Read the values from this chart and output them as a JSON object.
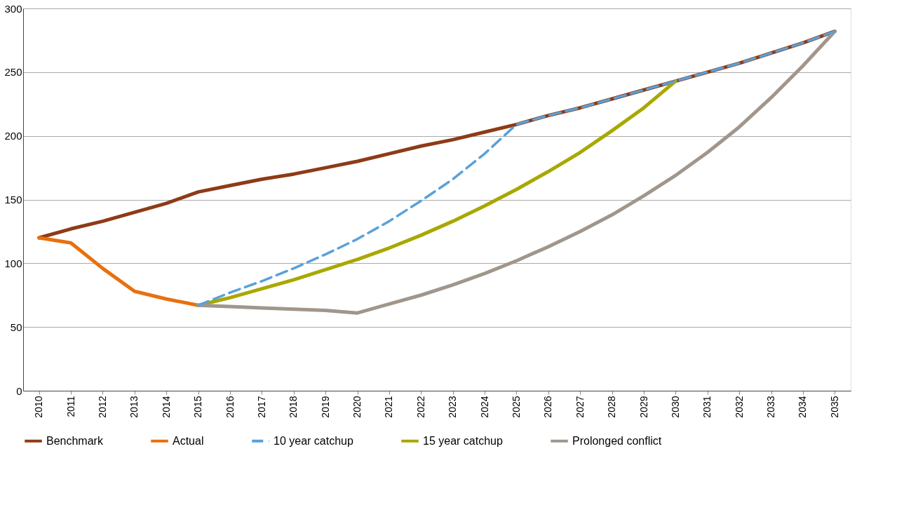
{
  "chart_data": {
    "type": "line",
    "categories": [
      "2010",
      "2011",
      "2012",
      "2013",
      "2014",
      "2015",
      "2016",
      "2017",
      "2018",
      "2019",
      "2020",
      "2021",
      "2022",
      "2023",
      "2024",
      "2025",
      "2026",
      "2027",
      "2028",
      "2029",
      "2030",
      "2031",
      "2032",
      "2033",
      "2034",
      "2035"
    ],
    "ylim": [
      0,
      300
    ],
    "yticks": [
      0,
      50,
      100,
      150,
      200,
      250,
      300
    ],
    "grid": "y",
    "legend": "bottom",
    "marker": "none",
    "series": [
      {
        "name": "Benchmark",
        "color": "#8e3b17",
        "line_style": "solid",
        "values": [
          120,
          127,
          133,
          140,
          147,
          156,
          161,
          166,
          170,
          175,
          180,
          186,
          192,
          197,
          203,
          209,
          216,
          222,
          229,
          236,
          243,
          250,
          257,
          265,
          273,
          282
        ]
      },
      {
        "name": "Actual",
        "color": "#e8700f",
        "line_style": "solid",
        "values": [
          120,
          116,
          96,
          78,
          72,
          67,
          null,
          null,
          null,
          null,
          null,
          null,
          null,
          null,
          null,
          null,
          null,
          null,
          null,
          null,
          null,
          null,
          null,
          null,
          null,
          null
        ]
      },
      {
        "name": "10 year catchup",
        "color": "#5aa1d8",
        "line_style": "dashed",
        "values": [
          null,
          null,
          null,
          null,
          null,
          67,
          77,
          86,
          96,
          107,
          119,
          133,
          149,
          166,
          186,
          209,
          216,
          222,
          229,
          236,
          243,
          250,
          257,
          265,
          273,
          282
        ]
      },
      {
        "name": "15 year catchup",
        "color": "#a8a800",
        "line_style": "solid",
        "values": [
          null,
          null,
          null,
          null,
          null,
          67,
          73,
          80,
          87,
          95,
          103,
          112,
          122,
          133,
          145,
          158,
          172,
          187,
          204,
          222,
          243,
          null,
          null,
          null,
          null,
          null
        ]
      },
      {
        "name": "Prolonged conflict",
        "color": "#a0968c",
        "line_style": "solid",
        "values": [
          null,
          null,
          null,
          null,
          null,
          67,
          66,
          65,
          64,
          63,
          61,
          68,
          75,
          83,
          92,
          102,
          113,
          125,
          138,
          153,
          169,
          187,
          207,
          230,
          255,
          282
        ]
      }
    ]
  }
}
